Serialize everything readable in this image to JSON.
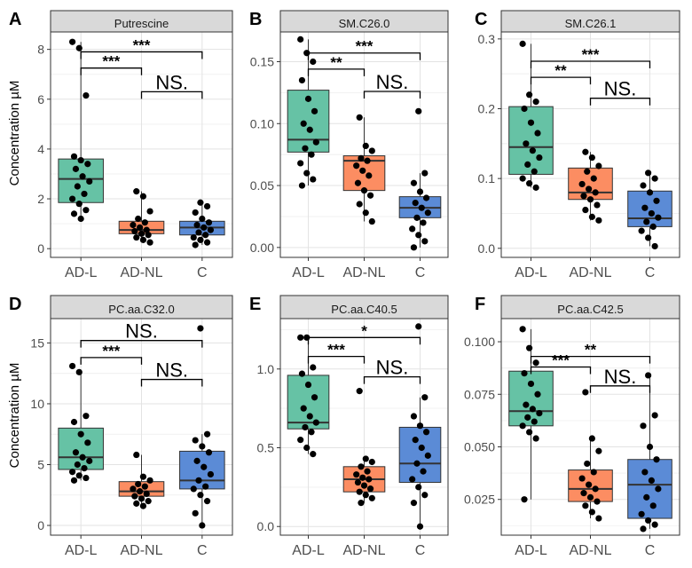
{
  "figure": {
    "y_axis_label": "Concentration µM",
    "colors": {
      "AD-L": "#66c2a5",
      "AD-NL": "#fc8d62",
      "C": "#5b8bd6"
    }
  },
  "chart_data": [
    {
      "panel": "A",
      "title": "Putrescine",
      "type": "box",
      "categories": [
        "AD-L",
        "AD-NL",
        "C"
      ],
      "ylim": [
        -0.35,
        8.7
      ],
      "yticks": [
        0,
        2,
        4,
        6,
        8
      ],
      "ytick_labels": [
        "0",
        "2",
        "4",
        "6",
        "8"
      ],
      "boxes": [
        {
          "group": "AD-L",
          "q1": 1.85,
          "median": 2.8,
          "q3": 3.6,
          "whisker_low": 1.15,
          "whisker_high": 8.3
        },
        {
          "group": "AD-NL",
          "q1": 0.6,
          "median": 0.75,
          "q3": 1.1,
          "whisker_low": 0.25,
          "whisker_high": 2.3
        },
        {
          "group": "C",
          "q1": 0.55,
          "median": 0.85,
          "q3": 1.1,
          "whisker_low": 0.15,
          "whisker_high": 1.85
        }
      ],
      "points": [
        [
          8.3,
          8.05,
          6.15,
          3.7,
          3.55,
          3.4,
          3.2,
          2.9,
          2.7,
          2.5,
          2.2,
          2.0,
          1.8,
          1.55,
          1.4,
          1.2
        ],
        [
          2.3,
          2.1,
          1.5,
          1.2,
          1.05,
          0.95,
          0.85,
          0.75,
          0.7,
          0.6,
          0.55,
          0.45,
          0.35,
          0.25
        ],
        [
          1.85,
          1.7,
          1.45,
          1.2,
          1.05,
          0.95,
          0.85,
          0.75,
          0.65,
          0.55,
          0.45,
          0.35,
          0.25,
          0.15
        ]
      ],
      "comparisons": [
        {
          "from": "AD-L",
          "to": "C",
          "label": "***",
          "y": 7.9
        },
        {
          "from": "AD-L",
          "to": "AD-NL",
          "label": "***",
          "y": 7.25
        },
        {
          "from": "AD-NL",
          "to": "C",
          "label": "NS.",
          "y": 6.3
        }
      ]
    },
    {
      "panel": "B",
      "title": "SM.C26.0",
      "type": "box",
      "categories": [
        "AD-L",
        "AD-NL",
        "C"
      ],
      "ylim": [
        -0.008,
        0.174
      ],
      "yticks": [
        0,
        0.05,
        0.1,
        0.15
      ],
      "ytick_labels": [
        "0.00",
        "0.05",
        "0.10",
        "0.15"
      ],
      "boxes": [
        {
          "group": "AD-L",
          "q1": 0.077,
          "median": 0.087,
          "q3": 0.127,
          "whisker_low": 0.05,
          "whisker_high": 0.168
        },
        {
          "group": "AD-NL",
          "q1": 0.046,
          "median": 0.07,
          "q3": 0.074,
          "whisker_low": 0.021,
          "whisker_high": 0.105
        },
        {
          "group": "C",
          "q1": 0.024,
          "median": 0.032,
          "q3": 0.041,
          "whisker_low": 0.0,
          "whisker_high": 0.06
        }
      ],
      "points": [
        [
          0.168,
          0.157,
          0.15,
          0.135,
          0.12,
          0.11,
          0.1,
          0.095,
          0.085,
          0.08,
          0.075,
          0.068,
          0.06,
          0.055,
          0.05
        ],
        [
          0.105,
          0.082,
          0.078,
          0.072,
          0.07,
          0.066,
          0.062,
          0.058,
          0.052,
          0.046,
          0.042,
          0.035,
          0.028,
          0.021
        ],
        [
          0.11,
          0.06,
          0.052,
          0.045,
          0.04,
          0.036,
          0.032,
          0.028,
          0.024,
          0.02,
          0.015,
          0.01,
          0.005,
          0.0
        ]
      ],
      "comparisons": [
        {
          "from": "AD-L",
          "to": "C",
          "label": "***",
          "y": 0.157
        },
        {
          "from": "AD-L",
          "to": "AD-NL",
          "label": "**",
          "y": 0.144
        },
        {
          "from": "AD-NL",
          "to": "C",
          "label": "NS.",
          "y": 0.126
        }
      ]
    },
    {
      "panel": "C",
      "title": "SM.C26.1",
      "type": "box",
      "categories": [
        "AD-L",
        "AD-NL",
        "C"
      ],
      "ylim": [
        -0.013,
        0.31
      ],
      "yticks": [
        0,
        0.1,
        0.2,
        0.3
      ],
      "ytick_labels": [
        "0.0",
        "0.1",
        "0.2",
        "0.3"
      ],
      "boxes": [
        {
          "group": "AD-L",
          "q1": 0.106,
          "median": 0.145,
          "q3": 0.203,
          "whisker_low": 0.087,
          "whisker_high": 0.293
        },
        {
          "group": "AD-NL",
          "q1": 0.07,
          "median": 0.08,
          "q3": 0.115,
          "whisker_low": 0.04,
          "whisker_high": 0.138
        },
        {
          "group": "C",
          "q1": 0.031,
          "median": 0.043,
          "q3": 0.082,
          "whisker_low": 0.003,
          "whisker_high": 0.108
        }
      ],
      "points": [
        [
          0.293,
          0.22,
          0.21,
          0.2,
          0.18,
          0.165,
          0.15,
          0.14,
          0.13,
          0.12,
          0.11,
          0.1,
          0.093,
          0.087
        ],
        [
          0.138,
          0.13,
          0.118,
          0.11,
          0.1,
          0.092,
          0.085,
          0.08,
          0.075,
          0.07,
          0.062,
          0.055,
          0.045,
          0.04
        ],
        [
          0.108,
          0.1,
          0.09,
          0.08,
          0.068,
          0.058,
          0.05,
          0.044,
          0.038,
          0.031,
          0.025,
          0.015,
          0.003
        ]
      ],
      "comparisons": [
        {
          "from": "AD-L",
          "to": "C",
          "label": "***",
          "y": 0.268
        },
        {
          "from": "AD-L",
          "to": "AD-NL",
          "label": "**",
          "y": 0.245
        },
        {
          "from": "AD-NL",
          "to": "C",
          "label": "NS.",
          "y": 0.215
        }
      ]
    },
    {
      "panel": "D",
      "title": "PC.aa.C32.0",
      "type": "box",
      "categories": [
        "AD-L",
        "AD-NL",
        "C"
      ],
      "ylim": [
        -0.8,
        17.0
      ],
      "yticks": [
        0,
        5,
        10,
        15
      ],
      "ytick_labels": [
        "0",
        "5",
        "10",
        "15"
      ],
      "boxes": [
        {
          "group": "AD-L",
          "q1": 4.6,
          "median": 5.6,
          "q3": 8.0,
          "whisker_low": 3.7,
          "whisker_high": 12.6
        },
        {
          "group": "AD-NL",
          "q1": 2.4,
          "median": 2.8,
          "q3": 3.6,
          "whisker_low": 1.6,
          "whisker_high": 5.8
        },
        {
          "group": "C",
          "q1": 3.0,
          "median": 3.7,
          "q3": 6.1,
          "whisker_low": 0.0,
          "whisker_high": 7.5
        }
      ],
      "points": [
        [
          13.1,
          12.6,
          9.0,
          8.5,
          7.5,
          6.8,
          6.0,
          5.6,
          5.3,
          5.0,
          4.7,
          4.4,
          4.1,
          3.9,
          3.7
        ],
        [
          5.8,
          4.0,
          3.7,
          3.4,
          3.2,
          3.0,
          2.8,
          2.6,
          2.4,
          2.2,
          2.0,
          1.8,
          1.6
        ],
        [
          16.2,
          7.5,
          7.0,
          6.5,
          6.0,
          5.3,
          4.8,
          4.2,
          3.7,
          3.2,
          3.0,
          2.5,
          2.0,
          1.0,
          0.0
        ]
      ],
      "comparisons": [
        {
          "from": "AD-L",
          "to": "C",
          "label": "NS.",
          "y": 15.2
        },
        {
          "from": "AD-L",
          "to": "AD-NL",
          "label": "***",
          "y": 13.8
        },
        {
          "from": "AD-NL",
          "to": "C",
          "label": "NS.",
          "y": 12.0
        }
      ]
    },
    {
      "panel": "E",
      "title": "PC.aa.C40.5",
      "type": "box",
      "categories": [
        "AD-L",
        "AD-NL",
        "C"
      ],
      "ylim": [
        -0.055,
        1.32
      ],
      "yticks": [
        0,
        0.5,
        1.0
      ],
      "ytick_labels": [
        "0.0",
        "0.5",
        "1.0"
      ],
      "boxes": [
        {
          "group": "AD-L",
          "q1": 0.62,
          "median": 0.66,
          "q3": 0.96,
          "whisker_low": 0.46,
          "whisker_high": 1.2
        },
        {
          "group": "AD-NL",
          "q1": 0.22,
          "median": 0.3,
          "q3": 0.38,
          "whisker_low": 0.15,
          "whisker_high": 0.43
        },
        {
          "group": "C",
          "q1": 0.28,
          "median": 0.4,
          "q3": 0.63,
          "whisker_low": 0.0,
          "whisker_high": 0.82
        }
      ],
      "points": [
        [
          1.2,
          1.2,
          1.01,
          0.97,
          0.9,
          0.82,
          0.75,
          0.7,
          0.66,
          0.63,
          0.6,
          0.55,
          0.5,
          0.46
        ],
        [
          0.86,
          0.43,
          0.41,
          0.38,
          0.35,
          0.33,
          0.31,
          0.3,
          0.28,
          0.26,
          0.24,
          0.22,
          0.2,
          0.18,
          0.15
        ],
        [
          1.27,
          0.82,
          0.7,
          0.64,
          0.6,
          0.55,
          0.5,
          0.45,
          0.4,
          0.35,
          0.3,
          0.25,
          0.2,
          0.15,
          0.0
        ]
      ],
      "comparisons": [
        {
          "from": "AD-L",
          "to": "C",
          "label": "*",
          "y": 1.2
        },
        {
          "from": "AD-L",
          "to": "AD-NL",
          "label": "***",
          "y": 1.08
        },
        {
          "from": "AD-NL",
          "to": "C",
          "label": "NS.",
          "y": 0.95
        }
      ]
    },
    {
      "panel": "F",
      "title": "PC.aa.C42.5",
      "type": "box",
      "categories": [
        "AD-L",
        "AD-NL",
        "C"
      ],
      "ylim": [
        0.008,
        0.111
      ],
      "yticks": [
        0.025,
        0.05,
        0.075,
        0.1
      ],
      "ytick_labels": [
        "0.025",
        "0.050",
        "0.075",
        "0.100"
      ],
      "boxes": [
        {
          "group": "AD-L",
          "q1": 0.06,
          "median": 0.067,
          "q3": 0.086,
          "whisker_low": 0.025,
          "whisker_high": 0.106
        },
        {
          "group": "AD-NL",
          "q1": 0.024,
          "median": 0.03,
          "q3": 0.039,
          "whisker_low": 0.016,
          "whisker_high": 0.054
        },
        {
          "group": "C",
          "q1": 0.016,
          "median": 0.032,
          "q3": 0.044,
          "whisker_low": 0.011,
          "whisker_high": 0.084
        }
      ],
      "points": [
        [
          0.106,
          0.097,
          0.09,
          0.085,
          0.08,
          0.075,
          0.07,
          0.068,
          0.066,
          0.064,
          0.062,
          0.06,
          0.057,
          0.054,
          0.025
        ],
        [
          0.076,
          0.054,
          0.048,
          0.042,
          0.038,
          0.035,
          0.032,
          0.03,
          0.028,
          0.026,
          0.024,
          0.022,
          0.019,
          0.016
        ],
        [
          0.084,
          0.065,
          0.06,
          0.05,
          0.044,
          0.038,
          0.034,
          0.03,
          0.026,
          0.022,
          0.018,
          0.015,
          0.013,
          0.011
        ]
      ],
      "comparisons": [
        {
          "from": "AD-L",
          "to": "C",
          "label": "**",
          "y": 0.093
        },
        {
          "from": "AD-L",
          "to": "AD-NL",
          "label": "***",
          "y": 0.088
        },
        {
          "from": "AD-NL",
          "to": "C",
          "label": "NS.",
          "y": 0.079
        }
      ]
    }
  ]
}
